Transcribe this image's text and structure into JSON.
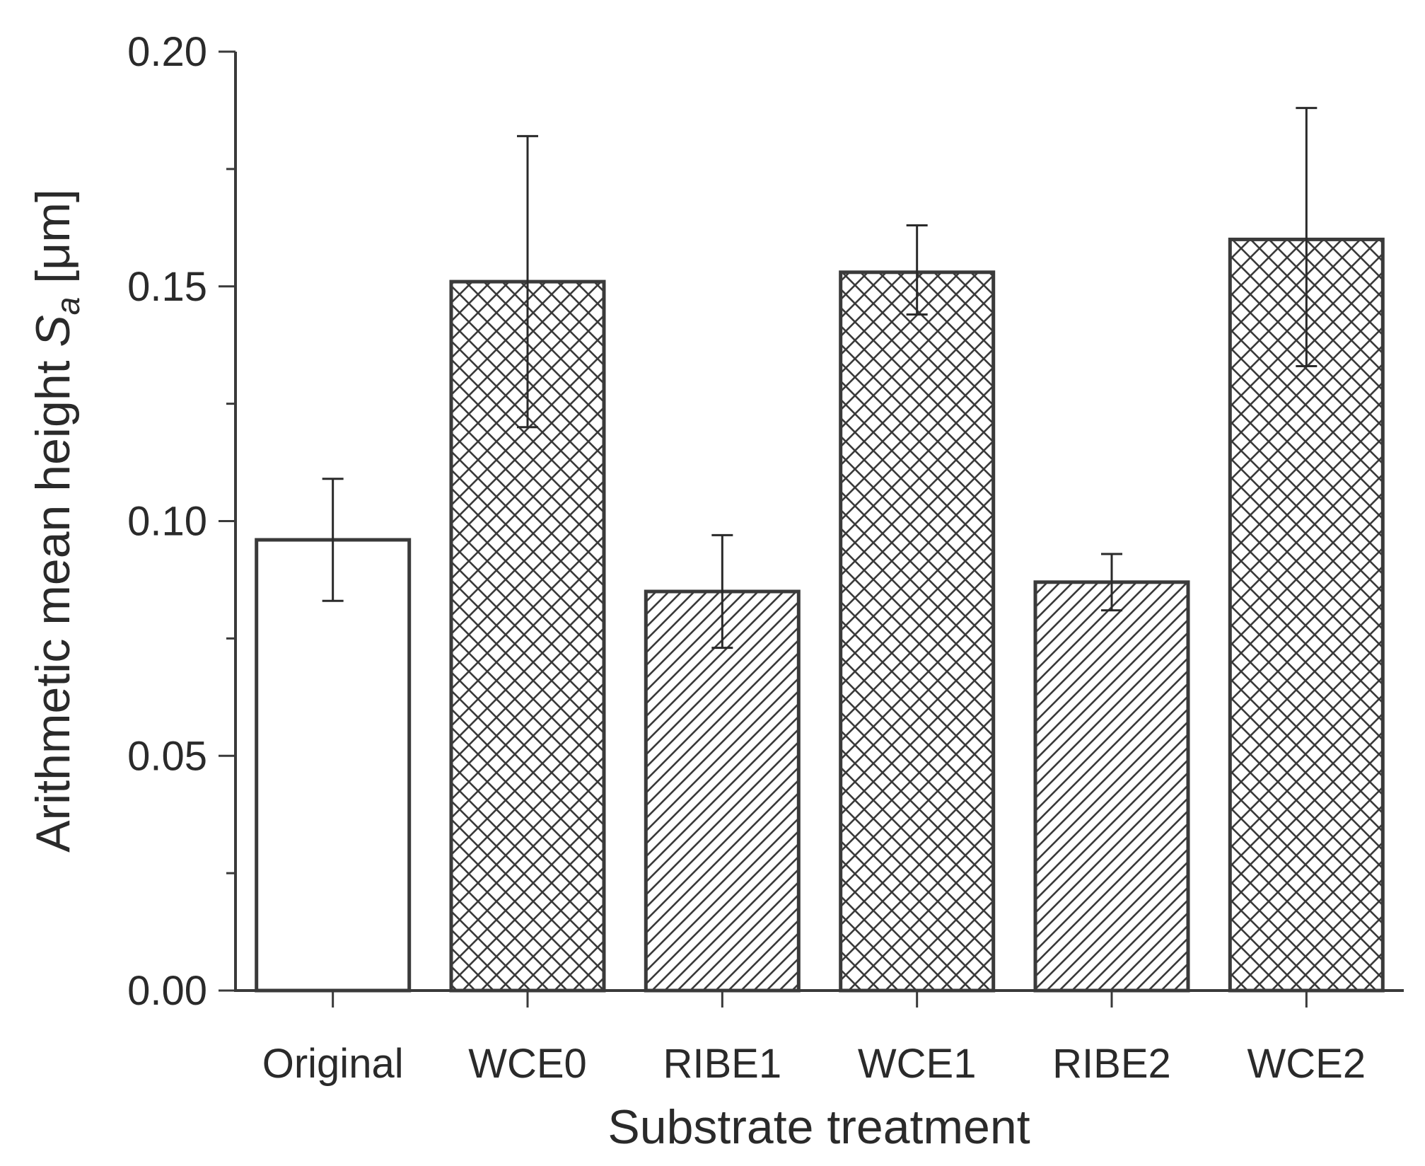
{
  "chart_data": {
    "type": "bar",
    "title": "",
    "xlabel": "Substrate treatment",
    "ylabel": {
      "main": "Arithmetic mean height ",
      "symbol": "S",
      "subscript": "a",
      "unit": " [μm]"
    },
    "ylim": [
      0,
      0.2
    ],
    "yticks": [
      0.0,
      0.05,
      0.1,
      0.15,
      0.2
    ],
    "ytick_labels": [
      "0.00",
      "0.05",
      "0.10",
      "0.15",
      "0.20"
    ],
    "grid": false,
    "categories": [
      "Original",
      "WCE0",
      "RIBE1",
      "WCE1",
      "RIBE2",
      "WCE2"
    ],
    "values": [
      0.096,
      0.151,
      0.085,
      0.153,
      0.087,
      0.16
    ],
    "error_low": [
      0.083,
      0.12,
      0.073,
      0.144,
      0.081,
      0.133
    ],
    "error_high": [
      0.109,
      0.182,
      0.097,
      0.163,
      0.093,
      0.188
    ],
    "patterns": [
      "none",
      "crosshatch",
      "diagonal",
      "crosshatch",
      "diagonal",
      "crosshatch"
    ]
  }
}
